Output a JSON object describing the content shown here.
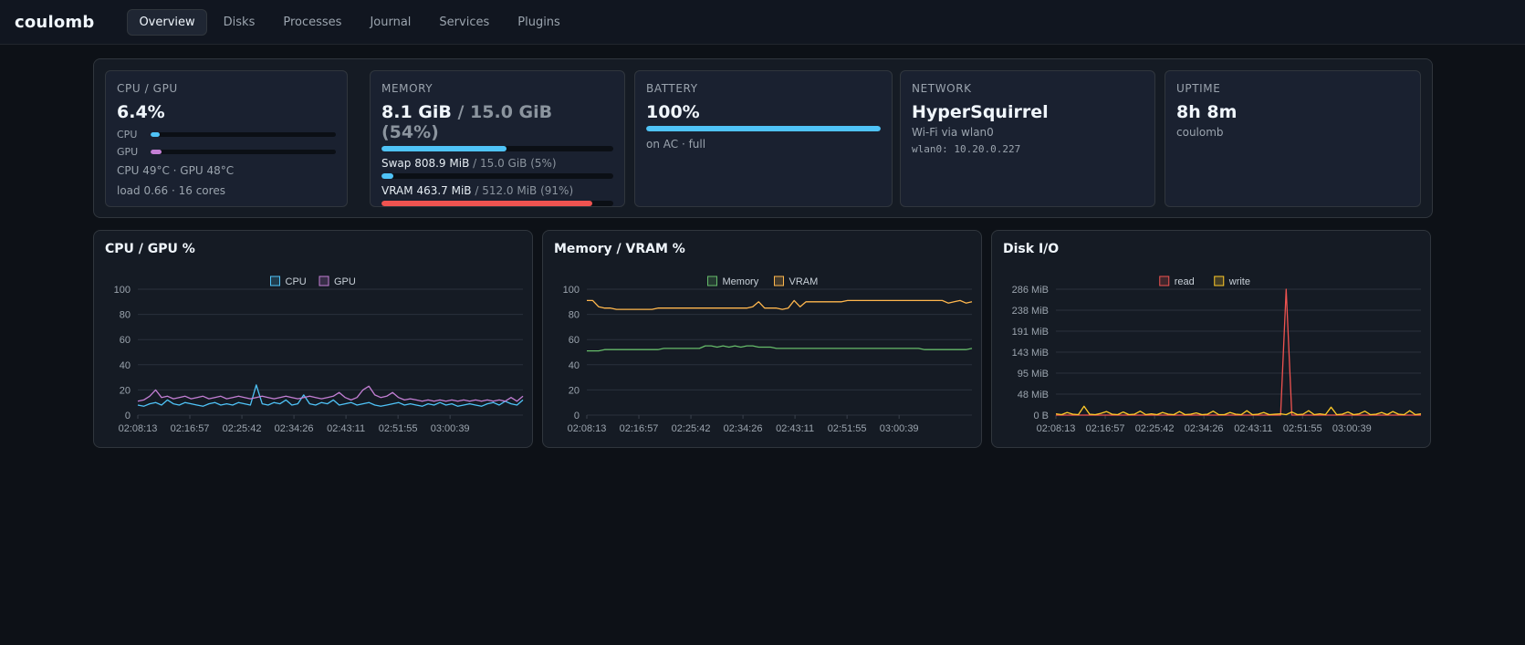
{
  "app": {
    "brand": "coulomb"
  },
  "nav": {
    "tabs": [
      {
        "label": "Overview",
        "active": true
      },
      {
        "label": "Disks"
      },
      {
        "label": "Processes"
      },
      {
        "label": "Journal"
      },
      {
        "label": "Services"
      },
      {
        "label": "Plugins"
      }
    ]
  },
  "summary": {
    "cpu": {
      "label": "CPU / GPU",
      "value": "6.4%",
      "cpu_label": "CPU",
      "cpu_fraction": 0.05,
      "gpu_label": "GPU",
      "gpu_fraction": 0.06,
      "temps": "CPU 49°C · GPU 48°C",
      "load": "load 0.66 · 16 cores"
    },
    "memory": {
      "label": "MEMORY",
      "value_used": "8.1 GiB",
      "value_rest": " / 15.0 GiB (54%)",
      "used_fraction": 0.54,
      "swap_used": "Swap 808.9 MiB",
      "swap_rest": " / 15.0 GiB (5%)",
      "swap_fraction": 0.05,
      "vram_used": "VRAM 463.7 MiB",
      "vram_rest": " / 512.0 MiB (91%)",
      "vram_fraction": 0.91
    },
    "battery": {
      "label": "BATTERY",
      "value": "100%",
      "fraction": 1.0,
      "status": "on AC · full"
    },
    "network": {
      "label": "NETWORK",
      "ssid": "HyperSquirrel",
      "via": "Wi-Fi via wlan0",
      "address": "wlan0: 10.20.0.227"
    },
    "uptime": {
      "label": "UPTIME",
      "value": "8h 8m",
      "host": "coulomb"
    }
  },
  "colors": {
    "cpu": "#4fc3f7",
    "gpu": "#c47fd5",
    "memory": "#66bb6a",
    "vram": "#ffb74d",
    "read": "#ef5350",
    "write": "#ffca28",
    "mem_bar": "#4fc3f7",
    "vram_bar": "#ef5350",
    "battery_bar": "#4fc3f7"
  },
  "charts": {
    "cpu_gpu": {
      "title": "CPU / GPU %"
    },
    "mem_vram": {
      "title": "Memory / VRAM %"
    },
    "disk": {
      "title": "Disk I/O"
    }
  },
  "chart_data": [
    {
      "type": "line",
      "title": "CPU / GPU %",
      "x_ticks": [
        "02:08:13",
        "02:16:57",
        "02:25:42",
        "02:34:26",
        "02:43:11",
        "02:51:55",
        "03:00:39"
      ],
      "y_ticks": [
        "100",
        "80",
        "60",
        "40",
        "20",
        "0"
      ],
      "ylim": [
        0,
        100
      ],
      "legend": "top-center",
      "grid": true,
      "series": [
        {
          "name": "CPU",
          "color": "#4fc3f7",
          "values": [
            8,
            7,
            9,
            10,
            8,
            12,
            9,
            8,
            10,
            9,
            8,
            7,
            9,
            10,
            8,
            9,
            8,
            10,
            9,
            8,
            24,
            9,
            8,
            10,
            9,
            12,
            8,
            9,
            16,
            9,
            8,
            10,
            9,
            12,
            8,
            9,
            10,
            8,
            9,
            10,
            8,
            7,
            8,
            9,
            10,
            8,
            9,
            8,
            7,
            9,
            8,
            10,
            8,
            9,
            7,
            8,
            9,
            8,
            7,
            9,
            10,
            8,
            11,
            9,
            8,
            12
          ]
        },
        {
          "name": "GPU",
          "color": "#c47fd5",
          "values": [
            11,
            12,
            15,
            20,
            14,
            15,
            13,
            14,
            15,
            13,
            14,
            15,
            13,
            14,
            15,
            13,
            14,
            15,
            14,
            13,
            14,
            15,
            14,
            13,
            14,
            15,
            14,
            13,
            14,
            15,
            14,
            13,
            14,
            15,
            18,
            14,
            12,
            14,
            20,
            23,
            16,
            14,
            15,
            18,
            14,
            12,
            13,
            12,
            11,
            12,
            11,
            12,
            11,
            12,
            11,
            12,
            11,
            12,
            11,
            12,
            11,
            12,
            11,
            14,
            11,
            15
          ]
        }
      ]
    },
    {
      "type": "line",
      "title": "Memory / VRAM %",
      "x_ticks": [
        "02:08:13",
        "02:16:57",
        "02:25:42",
        "02:34:26",
        "02:43:11",
        "02:51:55",
        "03:00:39"
      ],
      "y_ticks": [
        "100",
        "80",
        "60",
        "40",
        "20",
        "0"
      ],
      "ylim": [
        0,
        100
      ],
      "legend": "top-center",
      "grid": true,
      "series": [
        {
          "name": "Memory",
          "color": "#66bb6a",
          "values": [
            51,
            51,
            51,
            52,
            52,
            52,
            52,
            52,
            52,
            52,
            52,
            52,
            52,
            53,
            53,
            53,
            53,
            53,
            53,
            53,
            55,
            55,
            54,
            55,
            54,
            55,
            54,
            55,
            55,
            54,
            54,
            54,
            53,
            53,
            53,
            53,
            53,
            53,
            53,
            53,
            53,
            53,
            53,
            53,
            53,
            53,
            53,
            53,
            53,
            53,
            53,
            53,
            53,
            53,
            53,
            53,
            53,
            52,
            52,
            52,
            52,
            52,
            52,
            52,
            52,
            53
          ]
        },
        {
          "name": "VRAM",
          "color": "#ffb74d",
          "values": [
            91,
            91,
            86,
            85,
            85,
            84,
            84,
            84,
            84,
            84,
            84,
            84,
            85,
            85,
            85,
            85,
            85,
            85,
            85,
            85,
            85,
            85,
            85,
            85,
            85,
            85,
            85,
            85,
            86,
            90,
            85,
            85,
            85,
            84,
            85,
            91,
            86,
            90,
            90,
            90,
            90,
            90,
            90,
            90,
            91,
            91,
            91,
            91,
            91,
            91,
            91,
            91,
            91,
            91,
            91,
            91,
            91,
            91,
            91,
            91,
            91,
            89,
            90,
            91,
            89,
            90
          ]
        }
      ]
    },
    {
      "type": "line",
      "title": "Disk I/O",
      "x_ticks": [
        "02:08:13",
        "02:16:57",
        "02:25:42",
        "02:34:26",
        "02:43:11",
        "02:51:55",
        "03:00:39"
      ],
      "y_ticks": [
        "286 MiB",
        "238 MiB",
        "191 MiB",
        "143 MiB",
        "95 MiB",
        "48 MiB",
        "0 B"
      ],
      "ylim": [
        0,
        286
      ],
      "legend": "top-center",
      "grid": true,
      "series": [
        {
          "name": "read",
          "color": "#ef5350",
          "values": [
            0,
            0,
            0,
            0,
            0,
            0,
            0,
            0,
            0,
            0,
            0,
            0,
            0,
            0,
            0,
            0,
            0,
            0,
            0,
            0,
            0,
            0,
            0,
            0,
            0,
            0,
            0,
            0,
            0,
            0,
            0,
            0,
            0,
            0,
            0,
            0,
            0,
            0,
            0,
            0,
            0,
            286,
            0,
            0,
            0,
            0,
            0,
            0,
            0,
            0,
            0,
            0,
            0,
            0,
            0,
            0,
            0,
            0,
            0,
            0,
            0,
            0,
            0,
            0,
            0,
            0
          ]
        },
        {
          "name": "write",
          "color": "#ffca28",
          "values": [
            3,
            1,
            6,
            2,
            1,
            20,
            2,
            1,
            4,
            8,
            2,
            1,
            7,
            1,
            2,
            9,
            1,
            3,
            1,
            6,
            2,
            1,
            8,
            1,
            2,
            5,
            1,
            2,
            9,
            1,
            1,
            6,
            2,
            1,
            10,
            1,
            2,
            6,
            1,
            2,
            3,
            1,
            7,
            1,
            2,
            10,
            1,
            3,
            1,
            18,
            1,
            2,
            7,
            1,
            3,
            9,
            1,
            2,
            6,
            1,
            8,
            2,
            1,
            10,
            1,
            3
          ]
        }
      ]
    }
  ]
}
